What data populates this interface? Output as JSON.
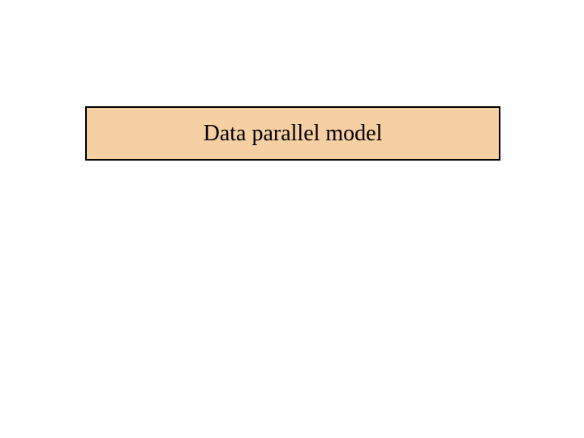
{
  "slide": {
    "title_box": {
      "text": "Data parallel model",
      "background_color": "#f6cfa3",
      "border_color": "#000000",
      "border_width": 2,
      "text_color": "#000000",
      "font_size": 28,
      "font_family": "Times New Roman"
    },
    "background_color": "#ffffff"
  }
}
